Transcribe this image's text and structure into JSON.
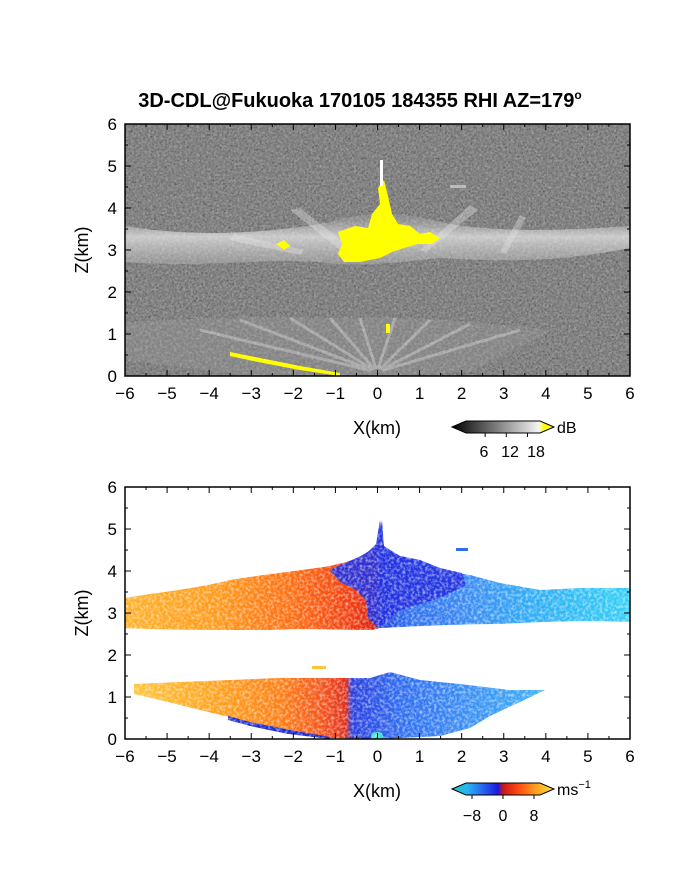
{
  "figure": {
    "title": "3D-CDL@Fukuoka 170105 184355 RHI AZ=179",
    "title_suffix": "o"
  },
  "chart_data": [
    {
      "type": "heatmap",
      "panel": "backscatter",
      "xlabel": "X(km)",
      "ylabel": "Z(km)",
      "xlim": [
        -6,
        6
      ],
      "ylim": [
        0,
        6
      ],
      "xticks": [
        "−6",
        "−5",
        "−4",
        "−3",
        "−2",
        "−1",
        "0",
        "1",
        "2",
        "3",
        "4",
        "5",
        "6"
      ],
      "yticks": [
        "0",
        "1",
        "2",
        "3",
        "4",
        "5",
        "6"
      ],
      "colorbar": {
        "unit": "dB",
        "ticks": [
          "6",
          "12",
          "18"
        ],
        "range": [
          0,
          21
        ],
        "colors": [
          "#000000",
          "#ffffff",
          "#ffff00"
        ]
      },
      "layers": [
        {
          "name": "upper cloud layer",
          "x_range": [
            -6,
            6
          ],
          "z_range": [
            2.6,
            3.5
          ],
          "value_db": 14
        },
        {
          "name": "lower cloud layer",
          "x_range": [
            -6,
            4.2
          ],
          "z_range": [
            0,
            1.4
          ],
          "value_db": 12
        },
        {
          "name": "saturated core",
          "x_range": [
            -1,
            1.6
          ],
          "z_range": [
            2.8,
            4.2
          ],
          "value_db": 20
        }
      ]
    },
    {
      "type": "heatmap",
      "panel": "doppler velocity",
      "xlabel": "X(km)",
      "ylabel": "Z(km)",
      "xlim": [
        -6,
        6
      ],
      "ylim": [
        0,
        6
      ],
      "xticks": [
        "−6",
        "−5",
        "−4",
        "−3",
        "−2",
        "−1",
        "0",
        "1",
        "2",
        "3",
        "4",
        "5",
        "6"
      ],
      "yticks": [
        "0",
        "1",
        "2",
        "3",
        "4",
        "5",
        "6"
      ],
      "colorbar": {
        "unit": "ms",
        "unit_exp": "−1",
        "ticks": [
          "−8",
          "0",
          "8"
        ],
        "range": [
          -10,
          10
        ]
      },
      "layers": [
        {
          "name": "upper layer",
          "x_range": [
            -6,
            6
          ],
          "z_range": [
            2.6,
            4.3
          ],
          "velocity_left": 6,
          "velocity_right": -7
        },
        {
          "name": "lower layer",
          "x_range": [
            -5.7,
            4.1
          ],
          "z_range": [
            0,
            1.4
          ],
          "velocity_left": 6,
          "velocity_right": -6
        }
      ]
    }
  ]
}
